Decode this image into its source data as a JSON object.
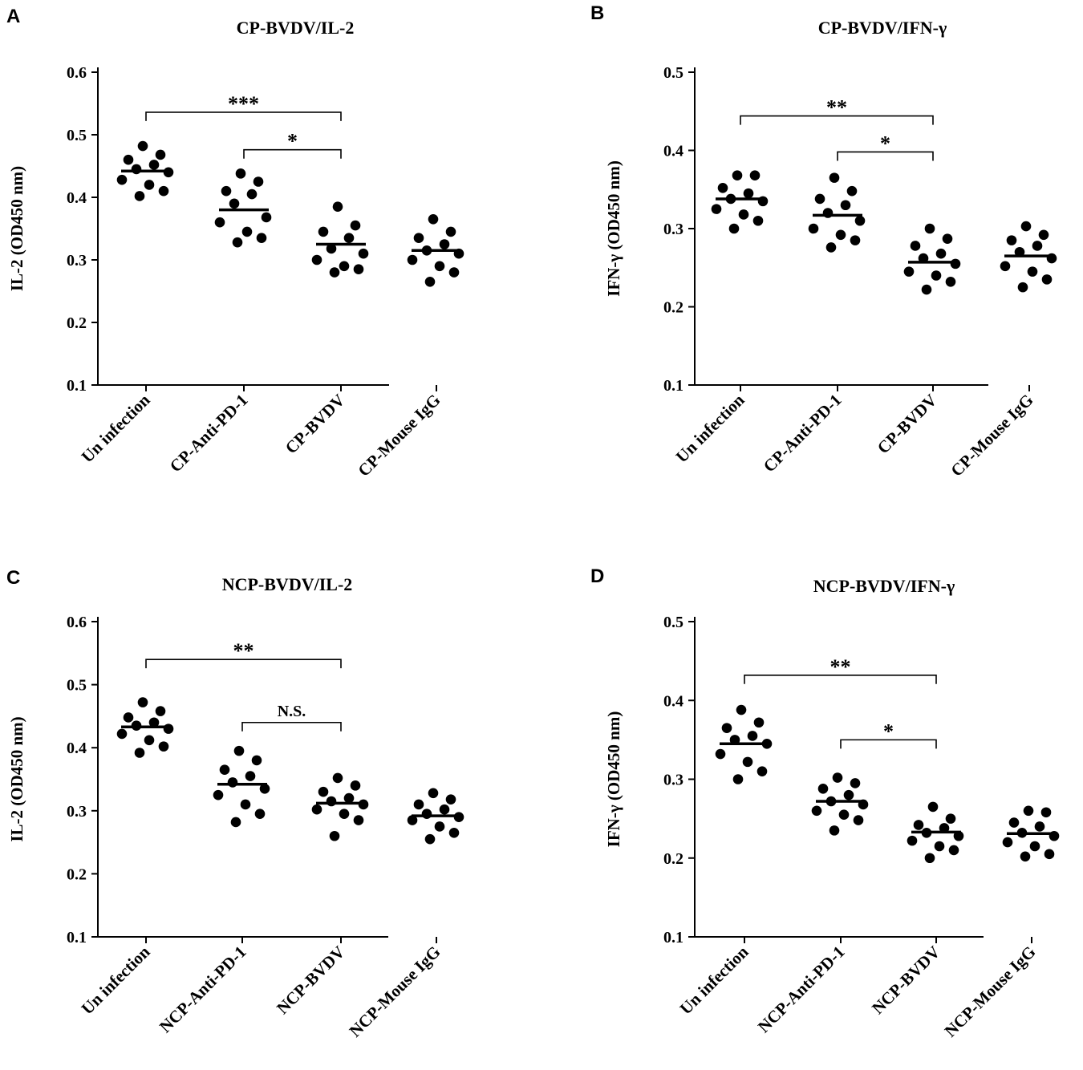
{
  "chart_data": [
    {
      "type": "scatter",
      "panel": "A",
      "title": "CP-BVDV/IL-2",
      "ylabel": "IL-2 (OD450 nm)",
      "ylim": [
        0.1,
        0.6
      ],
      "yticks": [
        "0.1",
        "0.2",
        "0.3",
        "0.4",
        "0.5",
        "0.6"
      ],
      "categories": [
        "Un infection",
        "CP-Anti-PD-1",
        "CP-BVDV",
        "CP-Mouse IgG"
      ],
      "means": [
        0.442,
        0.38,
        0.325,
        0.315
      ],
      "series": [
        {
          "name": "Un infection",
          "values": [
            0.482,
            0.468,
            0.46,
            0.452,
            0.445,
            0.44,
            0.428,
            0.42,
            0.41,
            0.402
          ]
        },
        {
          "name": "CP-Anti-PD-1",
          "values": [
            0.438,
            0.425,
            0.41,
            0.405,
            0.39,
            0.368,
            0.36,
            0.345,
            0.335,
            0.328
          ]
        },
        {
          "name": "CP-BVDV",
          "values": [
            0.385,
            0.355,
            0.345,
            0.335,
            0.318,
            0.31,
            0.3,
            0.29,
            0.285,
            0.28
          ]
        },
        {
          "name": "CP-Mouse IgG",
          "values": [
            0.365,
            0.345,
            0.335,
            0.325,
            0.315,
            0.31,
            0.3,
            0.29,
            0.28,
            0.265
          ]
        }
      ],
      "significance": [
        {
          "from": 0,
          "to": 2,
          "label": "***",
          "y": 0.536
        },
        {
          "from": 1,
          "to": 2,
          "label": "*",
          "y": 0.476
        }
      ]
    },
    {
      "type": "scatter",
      "panel": "B",
      "title": "CP-BVDV/IFN-γ",
      "ylabel": "IFN-γ (OD450 nm)",
      "ylim": [
        0.1,
        0.5
      ],
      "yticks": [
        "0.1",
        "0.2",
        "0.3",
        "0.4",
        "0.5"
      ],
      "categories": [
        "Un infection",
        "CP-Anti-PD-1",
        "CP-BVDV",
        "CP-Mouse IgG"
      ],
      "means": [
        0.338,
        0.317,
        0.257,
        0.265
      ],
      "series": [
        {
          "name": "Un infection",
          "values": [
            0.368,
            0.368,
            0.352,
            0.345,
            0.338,
            0.335,
            0.325,
            0.318,
            0.31,
            0.3
          ]
        },
        {
          "name": "CP-Anti-PD-1",
          "values": [
            0.365,
            0.348,
            0.338,
            0.33,
            0.32,
            0.31,
            0.3,
            0.292,
            0.285,
            0.276
          ]
        },
        {
          "name": "CP-BVDV",
          "values": [
            0.3,
            0.287,
            0.278,
            0.268,
            0.262,
            0.255,
            0.245,
            0.24,
            0.232,
            0.222
          ]
        },
        {
          "name": "CP-Mouse IgG",
          "values": [
            0.303,
            0.292,
            0.285,
            0.278,
            0.27,
            0.262,
            0.252,
            0.245,
            0.235,
            0.225
          ]
        }
      ],
      "significance": [
        {
          "from": 0,
          "to": 2,
          "label": "**",
          "y": 0.444
        },
        {
          "from": 1,
          "to": 2,
          "label": "*",
          "y": 0.398
        }
      ]
    },
    {
      "type": "scatter",
      "panel": "C",
      "title": "NCP-BVDV/IL-2",
      "ylabel": "IL-2 (OD450 nm)",
      "ylim": [
        0.1,
        0.6
      ],
      "yticks": [
        "0.1",
        "0.2",
        "0.3",
        "0.4",
        "0.5",
        "0.6"
      ],
      "categories": [
        "Un infection",
        "NCP-Anti-PD-1",
        "NCP-BVDV",
        "NCP-Mouse IgG"
      ],
      "means": [
        0.433,
        0.342,
        0.312,
        0.292
      ],
      "series": [
        {
          "name": "Un infection",
          "values": [
            0.472,
            0.458,
            0.448,
            0.44,
            0.435,
            0.43,
            0.422,
            0.412,
            0.402,
            0.392
          ]
        },
        {
          "name": "NCP-Anti-PD-1",
          "values": [
            0.395,
            0.38,
            0.365,
            0.355,
            0.345,
            0.335,
            0.325,
            0.31,
            0.295,
            0.282
          ]
        },
        {
          "name": "NCP-BVDV",
          "values": [
            0.352,
            0.34,
            0.33,
            0.32,
            0.315,
            0.31,
            0.302,
            0.295,
            0.285,
            0.26
          ]
        },
        {
          "name": "NCP-Mouse IgG",
          "values": [
            0.328,
            0.318,
            0.31,
            0.302,
            0.295,
            0.29,
            0.285,
            0.275,
            0.265,
            0.255
          ]
        }
      ],
      "significance": [
        {
          "from": 0,
          "to": 2,
          "label": "**",
          "y": 0.54
        },
        {
          "from": 1,
          "to": 2,
          "label": "N.S.",
          "y": 0.44
        }
      ]
    },
    {
      "type": "scatter",
      "panel": "D",
      "title": "NCP-BVDV/IFN-γ",
      "ylabel": "IFN-γ (OD450 nm)",
      "ylim": [
        0.1,
        0.5
      ],
      "yticks": [
        "0.1",
        "0.2",
        "0.3",
        "0.4",
        "0.5"
      ],
      "categories": [
        "Un infection",
        "NCP-Anti-PD-1",
        "NCP-BVDV",
        "NCP-Mouse IgG"
      ],
      "means": [
        0.345,
        0.272,
        0.233,
        0.231
      ],
      "series": [
        {
          "name": "Un infection",
          "values": [
            0.388,
            0.372,
            0.365,
            0.355,
            0.35,
            0.345,
            0.332,
            0.322,
            0.31,
            0.3
          ]
        },
        {
          "name": "NCP-Anti-PD-1",
          "values": [
            0.302,
            0.295,
            0.288,
            0.28,
            0.272,
            0.268,
            0.26,
            0.255,
            0.248,
            0.235
          ]
        },
        {
          "name": "NCP-BVDV",
          "values": [
            0.265,
            0.25,
            0.242,
            0.238,
            0.232,
            0.228,
            0.222,
            0.215,
            0.21,
            0.2
          ]
        },
        {
          "name": "NCP-Mouse IgG",
          "values": [
            0.26,
            0.258,
            0.245,
            0.24,
            0.232,
            0.228,
            0.22,
            0.215,
            0.205,
            0.202
          ]
        }
      ],
      "significance": [
        {
          "from": 0,
          "to": 2,
          "label": "**",
          "y": 0.432
        },
        {
          "from": 1,
          "to": 2,
          "label": "*",
          "y": 0.35
        }
      ]
    }
  ]
}
